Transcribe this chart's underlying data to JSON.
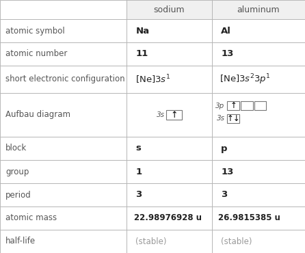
{
  "col_headers": [
    "",
    "sodium",
    "aluminum"
  ],
  "row_labels": [
    "atomic symbol",
    "atomic number",
    "short electronic configuration",
    "Aufbau diagram",
    "block",
    "group",
    "period",
    "atomic mass",
    "half-life"
  ],
  "na_values": [
    "Na",
    "11",
    "[Ne]3s^1",
    "aufbau_na",
    "s",
    "1",
    "3",
    "22.98976928 u",
    "(stable)"
  ],
  "al_values": [
    "Al",
    "13",
    "[Ne]3s^2 3p^1",
    "aufbau_al",
    "p",
    "13",
    "3",
    "26.9815385 u",
    "(stable)"
  ],
  "bg_color": "#f0f0f0",
  "cell_bg": "#ffffff",
  "header_bg": "#f0f0f0",
  "border_color": "#b0b0b0",
  "label_color": "#555555",
  "header_color": "#555555",
  "data_color": "#222222",
  "stable_color": "#999999",
  "col_splits": [
    0.415,
    0.695
  ],
  "figsize": [
    4.46,
    3.7
  ],
  "dpi": 100
}
